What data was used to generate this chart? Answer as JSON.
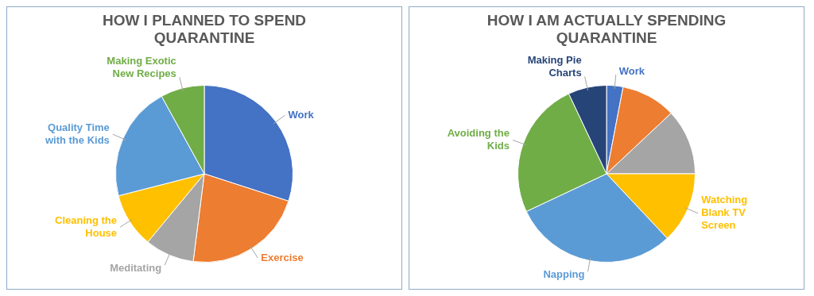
{
  "chart_data": [
    {
      "type": "pie",
      "title": "HOW I PLANNED TO SPEND QUARANTINE",
      "categories": [
        "Work",
        "Exercise",
        "Meditating",
        "Cleaning the House",
        "Quality Time with the Kids",
        "Making Exotic New Recipes"
      ],
      "values": [
        30,
        22,
        9,
        10,
        21,
        8
      ],
      "colors": [
        "#4472c4",
        "#ed7d31",
        "#a5a5a5",
        "#ffc000",
        "#5b9bd5",
        "#70ad47"
      ],
      "legend": false
    },
    {
      "type": "pie",
      "title": "HOW I AM ACTUALLY SPENDING QUARANTINE",
      "categories": [
        "Work",
        null,
        null,
        "Watching Blank TV Screen",
        "Napping",
        "Avoiding the Kids",
        "Making Pie Charts"
      ],
      "values": [
        3,
        10,
        12,
        13,
        30,
        25,
        7
      ],
      "colors": [
        "#4472c4",
        "#ed7d31",
        "#a5a5a5",
        "#ffc000",
        "#5b9bd5",
        "#70ad47",
        "#264478"
      ],
      "legend": false
    }
  ]
}
